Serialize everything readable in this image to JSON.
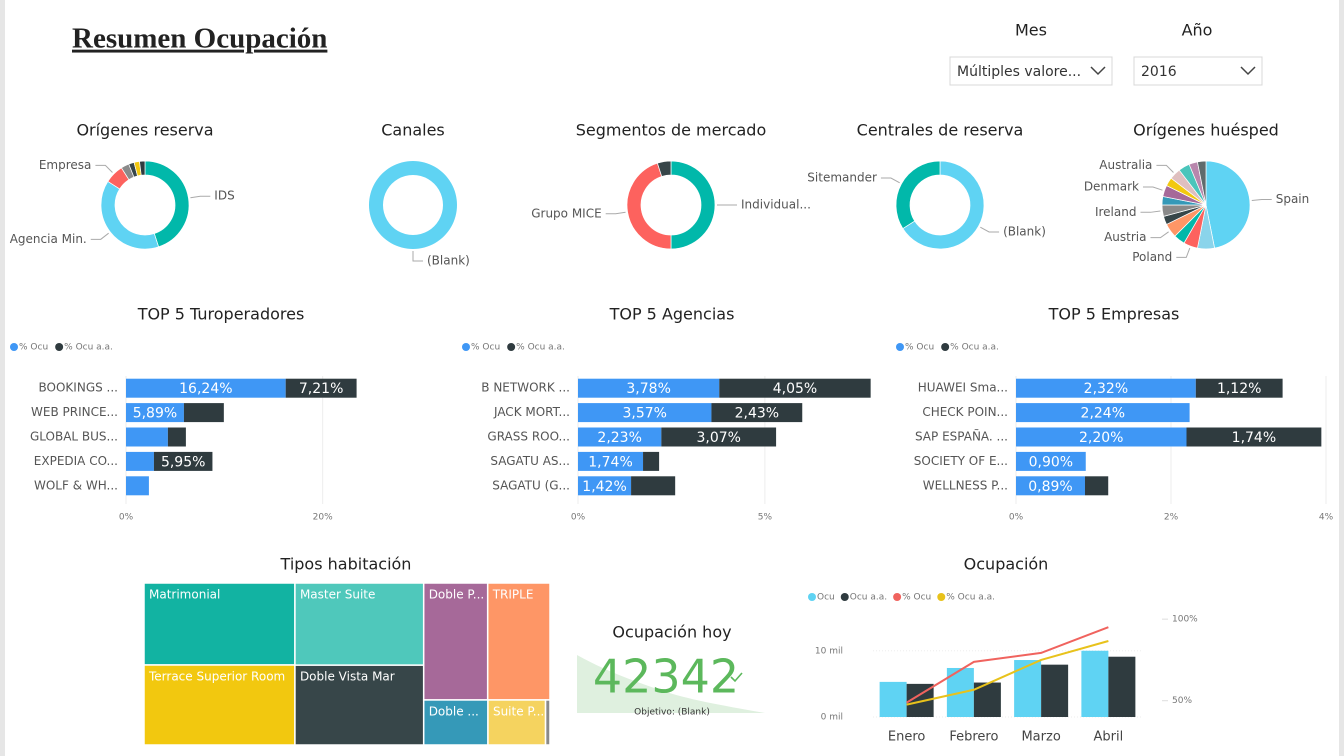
{
  "header": {
    "title": "Resumen Ocupación"
  },
  "filters": [
    {
      "label": "Mes",
      "value": "Múltiples valore..."
    },
    {
      "label": "Año",
      "value": "2016"
    }
  ],
  "chart_data": [
    {
      "type": "donut",
      "title": "Orígenes reserva",
      "categories": [
        "IDS",
        "Agencia Min.",
        "Empresa",
        null,
        null,
        null,
        null
      ],
      "values": [
        45,
        39,
        7,
        3,
        2,
        2,
        2
      ],
      "colors": [
        "#01b8aa",
        "#5fd3f3",
        "#fd625e",
        "#8a8a8a",
        "#374649",
        "#f2c80f",
        "#2f3b3f"
      ]
    },
    {
      "type": "donut",
      "title": "Canales",
      "categories": [
        "(Blank)"
      ],
      "values": [
        100
      ],
      "colors": [
        "#5fd3f3"
      ]
    },
    {
      "type": "donut",
      "title": "Segmentos de mercado",
      "categories": [
        "Individual...",
        "Grupo MICE",
        null
      ],
      "values": [
        50,
        45,
        5
      ],
      "colors": [
        "#01b8aa",
        "#fd625e",
        "#374649"
      ]
    },
    {
      "type": "donut",
      "title": "Centrales de reserva",
      "categories": [
        "(Blank)",
        "Sitemander"
      ],
      "values": [
        66,
        34
      ],
      "colors": [
        "#5fd3f3",
        "#01b8aa"
      ]
    },
    {
      "type": "pie",
      "title": "Orígenes huésped",
      "categories": [
        "Spain",
        null,
        "Poland",
        null,
        "Austria",
        null,
        "Ireland",
        null,
        "Denmark",
        null,
        "Australia",
        null,
        null,
        null
      ],
      "values": [
        45,
        6,
        5,
        4,
        5,
        3,
        4,
        3,
        4,
        3,
        4,
        4,
        3,
        3
      ],
      "colors": [
        "#5fd3f3",
        "#8ad4eb",
        "#fd625e",
        "#01b8aa",
        "#fe9666",
        "#374649",
        "#8a8a8a",
        "#3599b8",
        "#a66999",
        "#f2c80f",
        "#dfbfbf",
        "#4ac5bb",
        "#b887ad",
        "#5f6b6d"
      ]
    },
    {
      "type": "bar",
      "orientation": "horizontal",
      "stacked": true,
      "title": "TOP 5 Turoperadores",
      "categories": [
        "BOOKINGS ...",
        "WEB PRINCE...",
        "GLOBAL BUS...",
        "EXPEDIA CO...",
        "WOLF & WH..."
      ],
      "series": [
        {
          "name": "% Ocu",
          "color": "#3f97f5",
          "values": [
            16.24,
            5.89,
            4.26,
            2.84,
            2.33
          ],
          "value_labels": [
            "16,24%",
            "5,89%",
            null,
            null,
            null
          ]
        },
        {
          "name": "% Ocu a.a.",
          "color": "#2f3b3f",
          "values": [
            7.21,
            4.06,
            1.83,
            5.95,
            null
          ],
          "value_labels": [
            "7,21%",
            null,
            null,
            "5,95%",
            null
          ]
        }
      ],
      "xlim": [
        0,
        30
      ],
      "xticks": [
        {
          "value": 0,
          "label": "0%"
        },
        {
          "value": 20,
          "label": "20%"
        }
      ]
    },
    {
      "type": "bar",
      "orientation": "horizontal",
      "stacked": true,
      "title": "TOP 5 Agencias",
      "categories": [
        "B NETWORK ...",
        "JACK MORT...",
        "GRASS ROO...",
        "SAGATU AS...",
        "SAGATU (G..."
      ],
      "series": [
        {
          "name": "% Ocu",
          "color": "#3f97f5",
          "values": [
            3.78,
            3.57,
            2.23,
            1.74,
            1.42
          ],
          "value_labels": [
            "3,78%",
            "3,57%",
            "2,23%",
            "1,74%",
            "1,42%"
          ]
        },
        {
          "name": "% Ocu a.a.",
          "color": "#2f3b3f",
          "values": [
            4.05,
            2.43,
            3.07,
            0.43,
            1.18
          ],
          "value_labels": [
            "4,05%",
            "2,43%",
            "3,07%",
            null,
            null
          ]
        }
      ],
      "xlim": [
        0,
        8
      ],
      "xticks": [
        {
          "value": 0,
          "label": "0%"
        },
        {
          "value": 5,
          "label": "5%"
        }
      ]
    },
    {
      "type": "bar",
      "orientation": "horizontal",
      "stacked": true,
      "title": "TOP 5 Empresas",
      "categories": [
        "HUAWEI Sma...",
        "CHECK POIN...",
        "SAP ESPAÑA. ...",
        "SOCIETY OF E...",
        "WELLNESS P..."
      ],
      "series": [
        {
          "name": "% Ocu",
          "color": "#3f97f5",
          "values": [
            2.32,
            2.24,
            2.2,
            0.9,
            0.89
          ],
          "value_labels": [
            "2,32%",
            "2,24%",
            "2,20%",
            "0,90%",
            "0,89%"
          ]
        },
        {
          "name": "% Ocu a.a.",
          "color": "#2f3b3f",
          "values": [
            1.12,
            null,
            1.74,
            null,
            0.3
          ],
          "value_labels": [
            "1,12%",
            null,
            "1,74%",
            null,
            null
          ]
        }
      ],
      "xlim": [
        0,
        4
      ],
      "xticks": [
        {
          "value": 0,
          "label": "0%"
        },
        {
          "value": 2,
          "label": "2%"
        },
        {
          "value": 4,
          "label": "4%"
        }
      ]
    },
    {
      "type": "treemap",
      "title": "Tipos habitación",
      "categories": [
        "Matrimonial",
        "Terrace Superior Room",
        "Master Suite",
        "Doble Vista Mar",
        "Doble P...",
        "TRIPLE",
        "Doble ...",
        "Suite P...",
        null
      ],
      "values": [
        124,
        121,
        106,
        103,
        75,
        73,
        29,
        26,
        2
      ],
      "colors": [
        "#12b3a2",
        "#f2c80f",
        "#4fc8bb",
        "#374649",
        "#a66999",
        "#fe9666",
        "#3599b8",
        "#f5d35f",
        "#8a8a8a"
      ]
    },
    {
      "type": "kpi",
      "title": "Ocupación hoy",
      "value": 42342,
      "goal_label": "Objetivo: (Blank)",
      "color": "#5cb85c"
    },
    {
      "type": "combo",
      "title": "Ocupación",
      "categories": [
        "Enero",
        "Febrero",
        "Marzo",
        "Abril"
      ],
      "series": [
        {
          "name": "Ocu",
          "kind": "bar",
          "color": "#5fd3f3",
          "values": [
            5300,
            7400,
            8600,
            10000
          ]
        },
        {
          "name": "Ocu a.a.",
          "kind": "bar",
          "color": "#2f3b3f",
          "values": [
            5000,
            5200,
            7900,
            9100
          ]
        },
        {
          "name": "% Ocu",
          "kind": "line",
          "axis": "y2",
          "color": "#f0635e",
          "values": [
            48.8,
            73.8,
            79.3,
            95.1
          ]
        },
        {
          "name": "% Ocu a.a.",
          "kind": "line",
          "axis": "y2",
          "color": "#e8c21b",
          "values": [
            47.6,
            56.7,
            75,
            86.6
          ]
        }
      ],
      "ylim": [
        0,
        16000
      ],
      "yticks": [
        {
          "value": 0,
          "label": "0 mil"
        },
        {
          "value": 10000,
          "label": "10 mil"
        }
      ],
      "y2lim": [
        40,
        105
      ],
      "y2ticks": [
        {
          "value": 50,
          "label": "50%"
        },
        {
          "value": 100,
          "label": "100%"
        }
      ],
      "grid": true
    }
  ]
}
